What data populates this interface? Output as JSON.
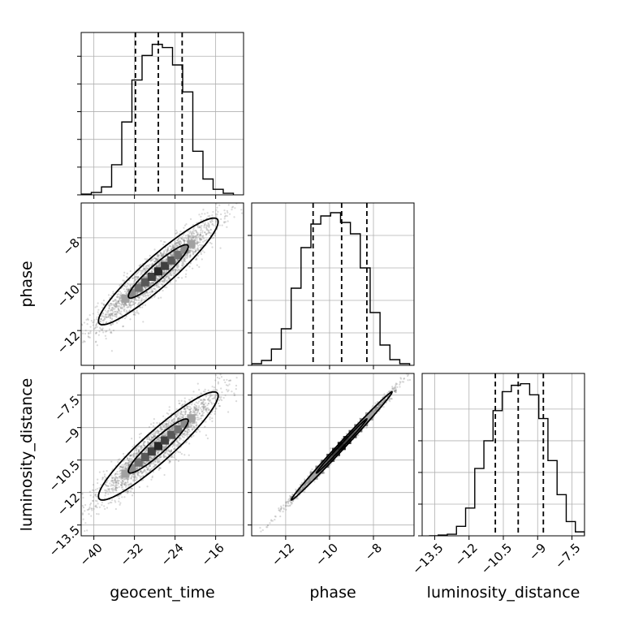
{
  "chart_data": {
    "type": "corner",
    "parameters": [
      "geocent_time",
      "phase",
      "luminosity_distance"
    ],
    "grid": true,
    "histograms": [
      {
        "parameter": "geocent_time",
        "xlim": [
          -42.5,
          -10.5
        ],
        "quantiles": [
          -31.8,
          -27.3,
          -22.6
        ],
        "bins": [
          -42.5,
          -40.5,
          -38.5,
          -36.5,
          -34.5,
          -32.5,
          -30.5,
          -28.5,
          -26.5,
          -24.5,
          -22.5,
          -20.5,
          -18.5,
          -16.5,
          -14.5,
          -12.5
        ],
        "counts": [
          1,
          3,
          10,
          38,
          92,
          145,
          176,
          190,
          186,
          164,
          130,
          55,
          20,
          7,
          2
        ],
        "ymax": 205,
        "xticks": [
          -40,
          -32,
          -24,
          -16
        ],
        "yticks": [
          0,
          35,
          70,
          105,
          140,
          175
        ],
        "show_xtick_labels": false
      },
      {
        "parameter": "phase",
        "xlim": [
          -13.55,
          -6.15
        ],
        "quantiles": [
          -10.75,
          -9.45,
          -8.3
        ],
        "bins": [
          -13.55,
          -13.1,
          -12.65,
          -12.2,
          -11.75,
          -11.3,
          -10.85,
          -10.4,
          -9.95,
          -9.5,
          -9.05,
          -8.6,
          -8.15,
          -7.7,
          -7.25,
          -6.8,
          -6.35
        ],
        "counts": [
          2,
          6,
          20,
          45,
          95,
          145,
          174,
          184,
          188,
          176,
          162,
          120,
          65,
          25,
          7,
          2
        ],
        "ymax": 200,
        "xticks": [
          -12,
          -10,
          -8
        ],
        "yticks": [
          0,
          40,
          80,
          120,
          160
        ],
        "show_xtick_labels": false
      },
      {
        "parameter": "luminosity_distance",
        "xlim": [
          -14.05,
          -6.95
        ],
        "quantiles": [
          -10.85,
          -9.85,
          -8.75
        ],
        "bins": [
          -13.75,
          -13.35,
          -12.95,
          -12.55,
          -12.15,
          -11.75,
          -11.35,
          -10.95,
          -10.55,
          -10.15,
          -9.75,
          -9.35,
          -8.95,
          -8.55,
          -8.15,
          -7.75,
          -7.35,
          -6.95
        ],
        "counts": [
          0,
          1,
          2,
          12,
          35,
          85,
          120,
          158,
          182,
          190,
          192,
          178,
          148,
          95,
          52,
          18,
          5,
          1
        ],
        "ymax": 205,
        "xticks": [
          -13.5,
          -12.0,
          -10.5,
          -9.0,
          -7.5
        ],
        "yticks": [
          0,
          40,
          80,
          120,
          160
        ],
        "show_xtick_labels": true
      }
    ],
    "pairs": [
      {
        "x": "geocent_time",
        "y": "phase",
        "xlim": [
          -42.5,
          -10.5
        ],
        "ylim": [
          -13.5,
          -6.5
        ],
        "center": [
          -27.3,
          -9.45
        ],
        "sd": [
          5.9,
          1.15
        ],
        "rho": 0.93,
        "xticks": [
          -40,
          -32,
          -24,
          -16
        ],
        "yticks": [
          -12,
          -10,
          -8
        ]
      },
      {
        "x": "geocent_time",
        "y": "luminosity_distance",
        "xlim": [
          -42.5,
          -10.5
        ],
        "ylim": [
          -14.0,
          -6.5
        ],
        "center": [
          -27.3,
          -9.85
        ],
        "sd": [
          5.9,
          1.25
        ],
        "rho": 0.93,
        "xticks": [
          -40,
          -32,
          -24,
          -16
        ],
        "yticks": [
          -13.5,
          -12.0,
          -10.5,
          -9.0,
          -7.5
        ]
      },
      {
        "x": "phase",
        "y": "luminosity_distance",
        "xlim": [
          -13.55,
          -6.15
        ],
        "ylim": [
          -14.0,
          -6.5
        ],
        "center": [
          -9.45,
          -9.85
        ],
        "sd": [
          1.15,
          1.25
        ],
        "rho": 0.996,
        "xticks": [
          -12,
          -10,
          -8
        ],
        "yticks": [
          -13.5,
          -12.0,
          -10.5,
          -9.0,
          -7.5
        ]
      }
    ],
    "contour_levels_sigma": [
      1,
      2
    ],
    "line_color": "#000000",
    "grid_color": "#b0b0b0"
  }
}
